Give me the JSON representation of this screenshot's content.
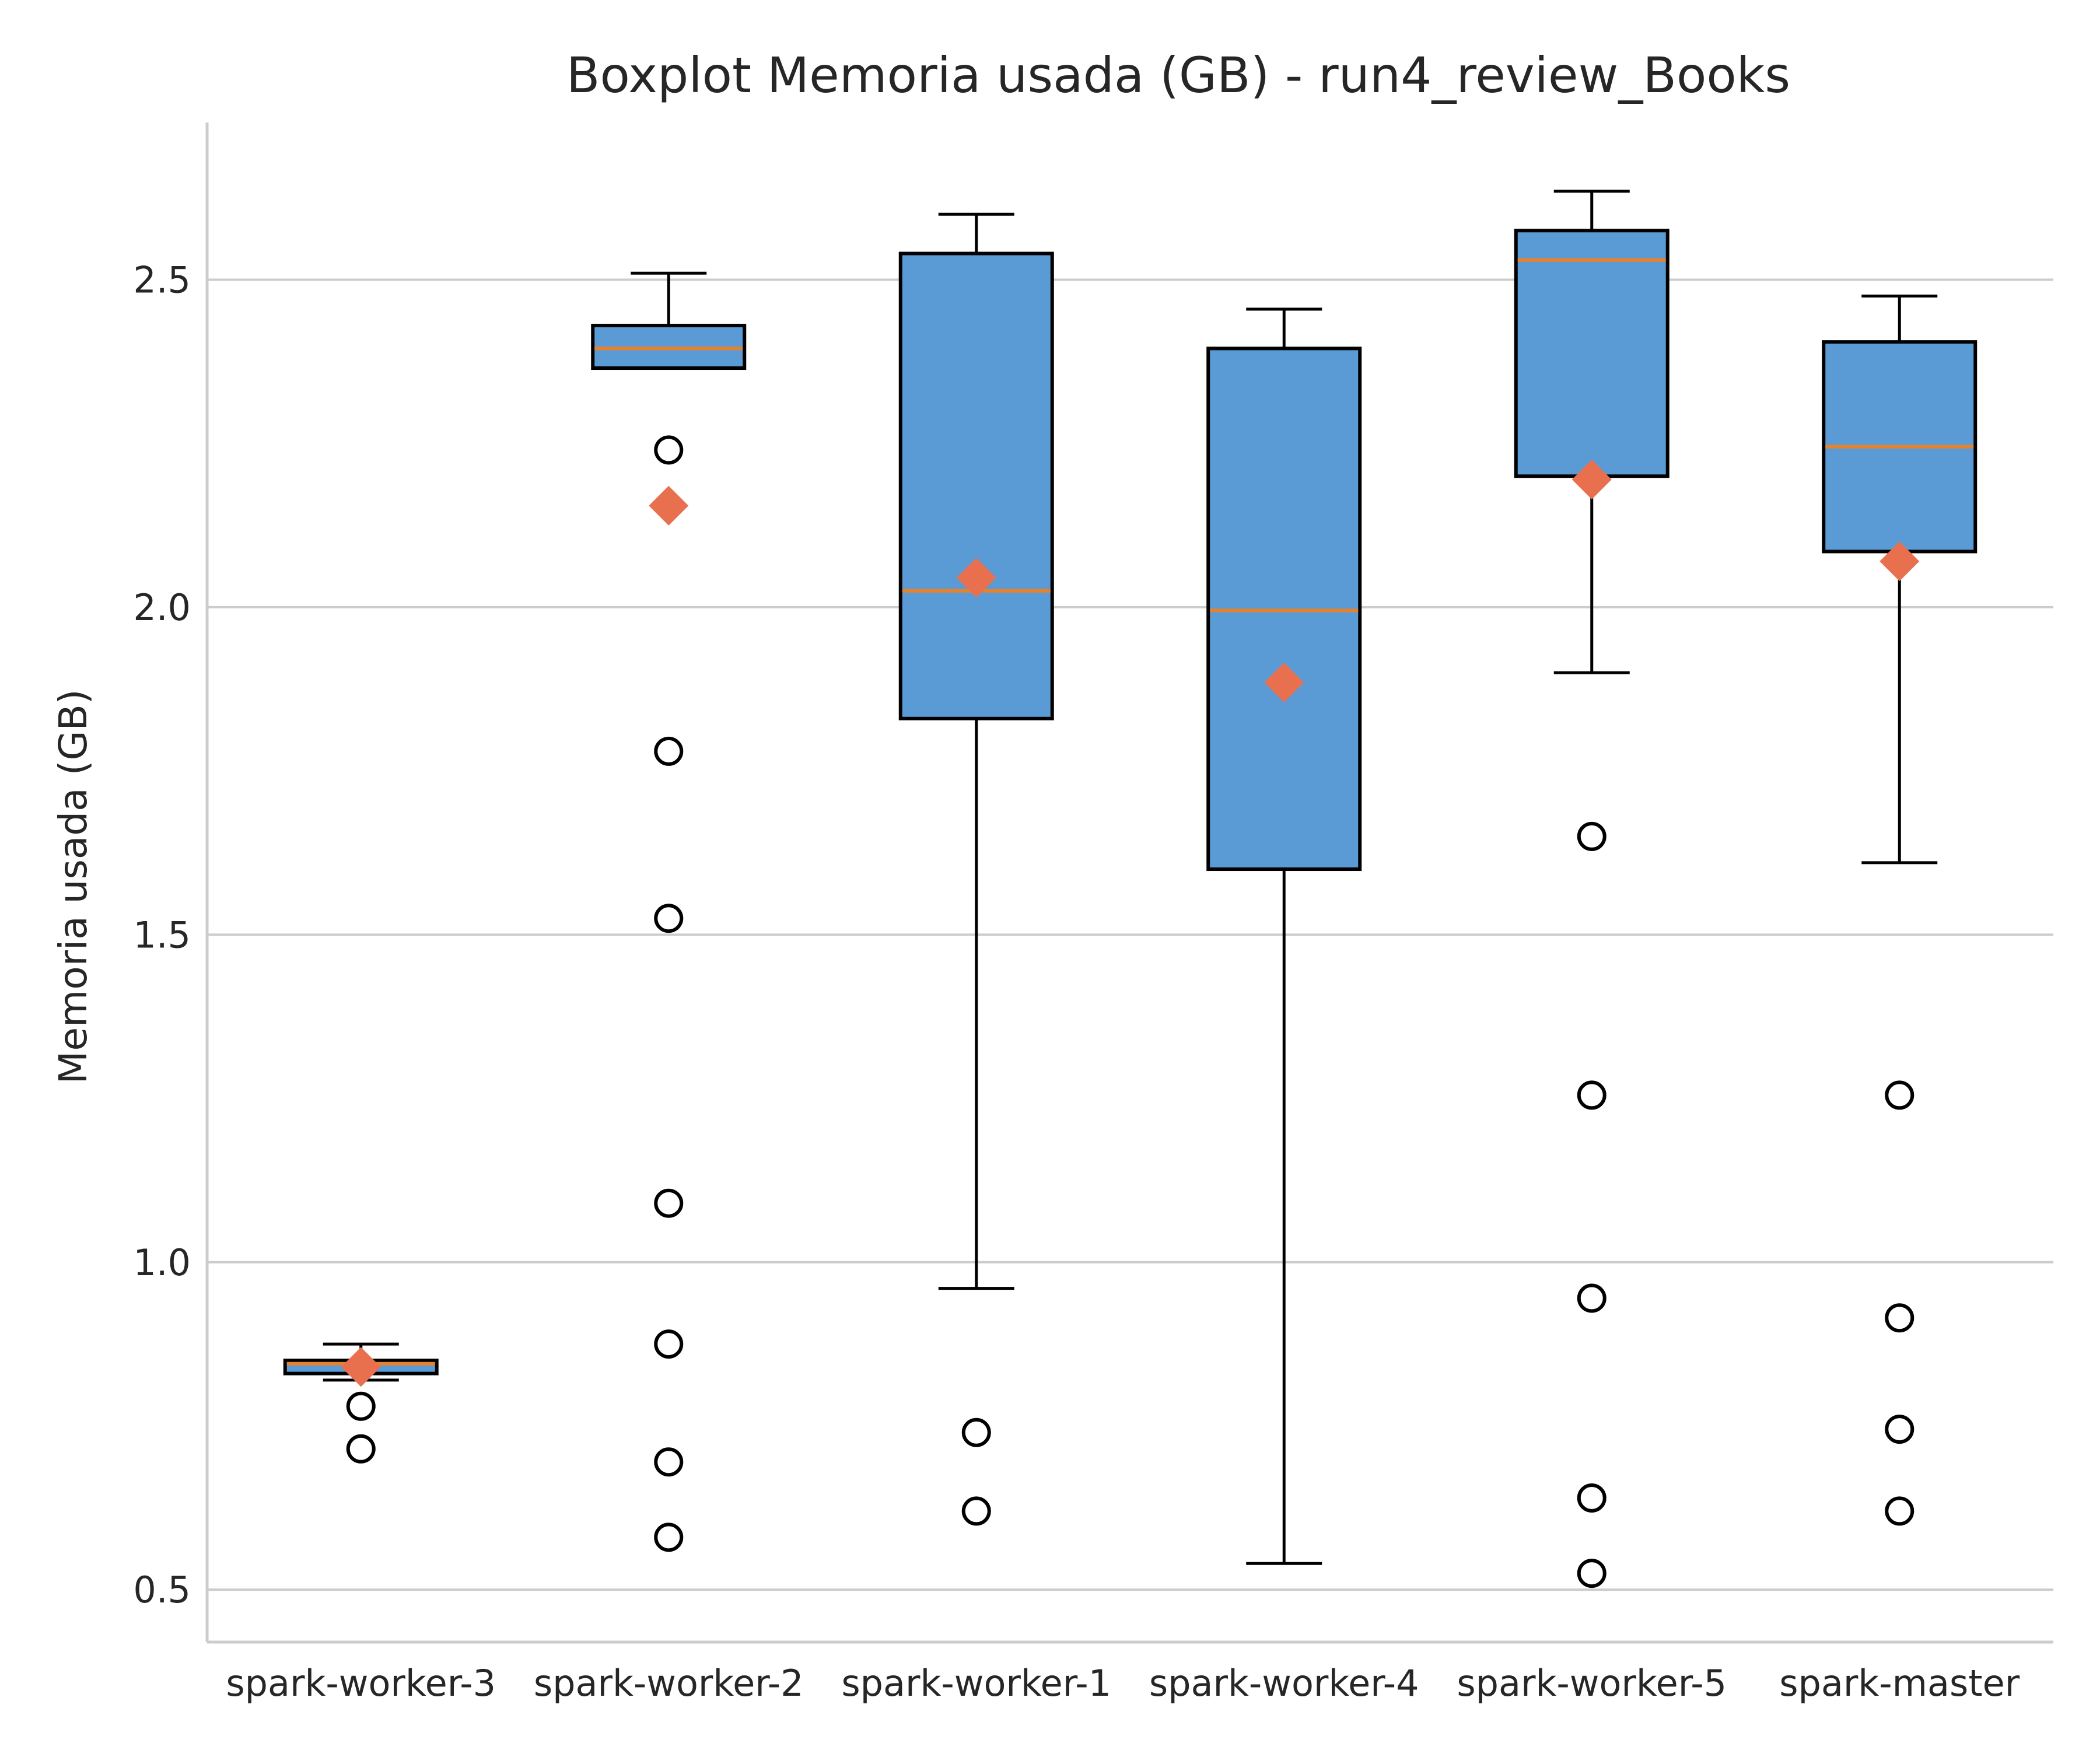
{
  "chart_data": {
    "type": "box",
    "title": "Boxplot Memoria usada (GB) - run4_review_Books",
    "xlabel": "",
    "ylabel": "Memoria usada (GB)",
    "ylim": [
      0.42,
      2.74
    ],
    "yticks": [
      0.5,
      1.0,
      1.5,
      2.0,
      2.5
    ],
    "ytick_labels": [
      "0.5",
      "1.0",
      "1.5",
      "2.0",
      "2.5"
    ],
    "grid": "horizontal",
    "colors": {
      "box_fill": "#5B9BD5",
      "box_edge": "#000000",
      "median": "#E8822A",
      "mean_marker": "#E8704F",
      "grid": "#CCCCCC",
      "spine": "#CCCCCC"
    },
    "categories": [
      "spark-worker-3",
      "spark-worker-2",
      "spark-worker-1",
      "spark-worker-4",
      "spark-worker-5",
      "spark-master"
    ],
    "boxes": [
      {
        "name": "spark-worker-3",
        "whisker_low": 0.82,
        "q1": 0.83,
        "median": 0.845,
        "q3": 0.85,
        "whisker_high": 0.875,
        "mean": 0.84,
        "outliers": [
          0.78,
          0.715
        ]
      },
      {
        "name": "spark-worker-2",
        "whisker_low": 2.365,
        "q1": 2.365,
        "median": 2.395,
        "q3": 2.43,
        "whisker_high": 2.51,
        "mean": 2.155,
        "outliers": [
          2.24,
          1.78,
          1.525,
          1.09,
          0.875,
          0.695,
          0.58
        ]
      },
      {
        "name": "spark-worker-1",
        "whisker_low": 0.96,
        "q1": 1.83,
        "median": 2.025,
        "q3": 2.54,
        "whisker_high": 2.6,
        "mean": 2.045,
        "outliers": [
          0.74,
          0.62
        ]
      },
      {
        "name": "spark-worker-4",
        "whisker_low": 0.54,
        "q1": 1.6,
        "median": 1.995,
        "q3": 2.395,
        "whisker_high": 2.455,
        "mean": 1.885,
        "outliers": []
      },
      {
        "name": "spark-worker-5",
        "whisker_low": 1.9,
        "q1": 2.2,
        "median": 2.53,
        "q3": 2.575,
        "whisker_high": 2.635,
        "mean": 2.195,
        "outliers": [
          1.65,
          1.255,
          0.945,
          0.64,
          0.525
        ]
      },
      {
        "name": "spark-master",
        "whisker_low": 1.61,
        "q1": 2.085,
        "median": 2.245,
        "q3": 2.405,
        "whisker_high": 2.475,
        "mean": 2.07,
        "outliers": [
          1.255,
          0.915,
          0.745,
          0.62
        ]
      }
    ]
  }
}
